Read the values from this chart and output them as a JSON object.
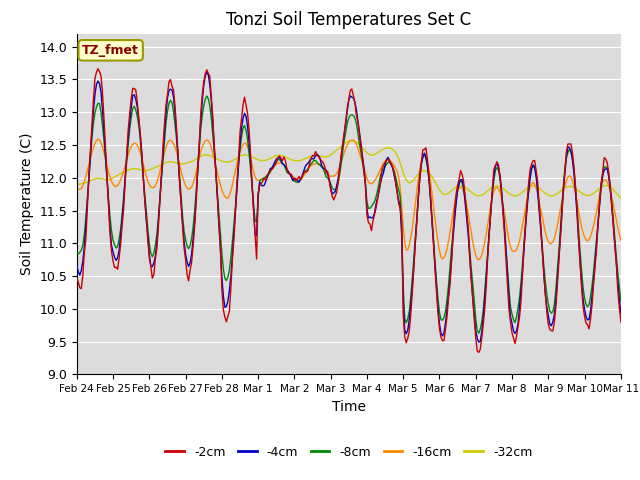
{
  "title": "Tonzi Soil Temperatures Set C",
  "xlabel": "Time",
  "ylabel": "Soil Temperature (C)",
  "ylim": [
    9.0,
    14.2
  ],
  "yticks": [
    9.0,
    9.5,
    10.0,
    10.5,
    11.0,
    11.5,
    12.0,
    12.5,
    13.0,
    13.5,
    14.0
  ],
  "annotation_text": "TZ_fmet",
  "annotation_color": "#8B0000",
  "annotation_bg": "#FFFFCC",
  "bg_color": "#DCDCDC",
  "line_colors": {
    "2cm": "#CC0000",
    "4cm": "#0000CC",
    "8cm": "#008800",
    "16cm": "#FF8800",
    "32cm": "#CCCC00"
  },
  "legend_labels": [
    "-2cm",
    "-4cm",
    "-8cm",
    "-16cm",
    "-32cm"
  ],
  "xtick_labels": [
    "Feb 24",
    "Feb 25",
    "Feb 26",
    "Feb 27",
    "Feb 28",
    "Mar 1",
    "Mar 2",
    "Mar 3",
    "Mar 4",
    "Mar 5",
    "Mar 6",
    "Mar 7",
    "Mar 8",
    "Mar 9",
    "Mar 10",
    "Mar 11"
  ],
  "xtick_positions": [
    0,
    24,
    48,
    72,
    96,
    120,
    144,
    168,
    192,
    216,
    240,
    264,
    288,
    312,
    336,
    360
  ]
}
